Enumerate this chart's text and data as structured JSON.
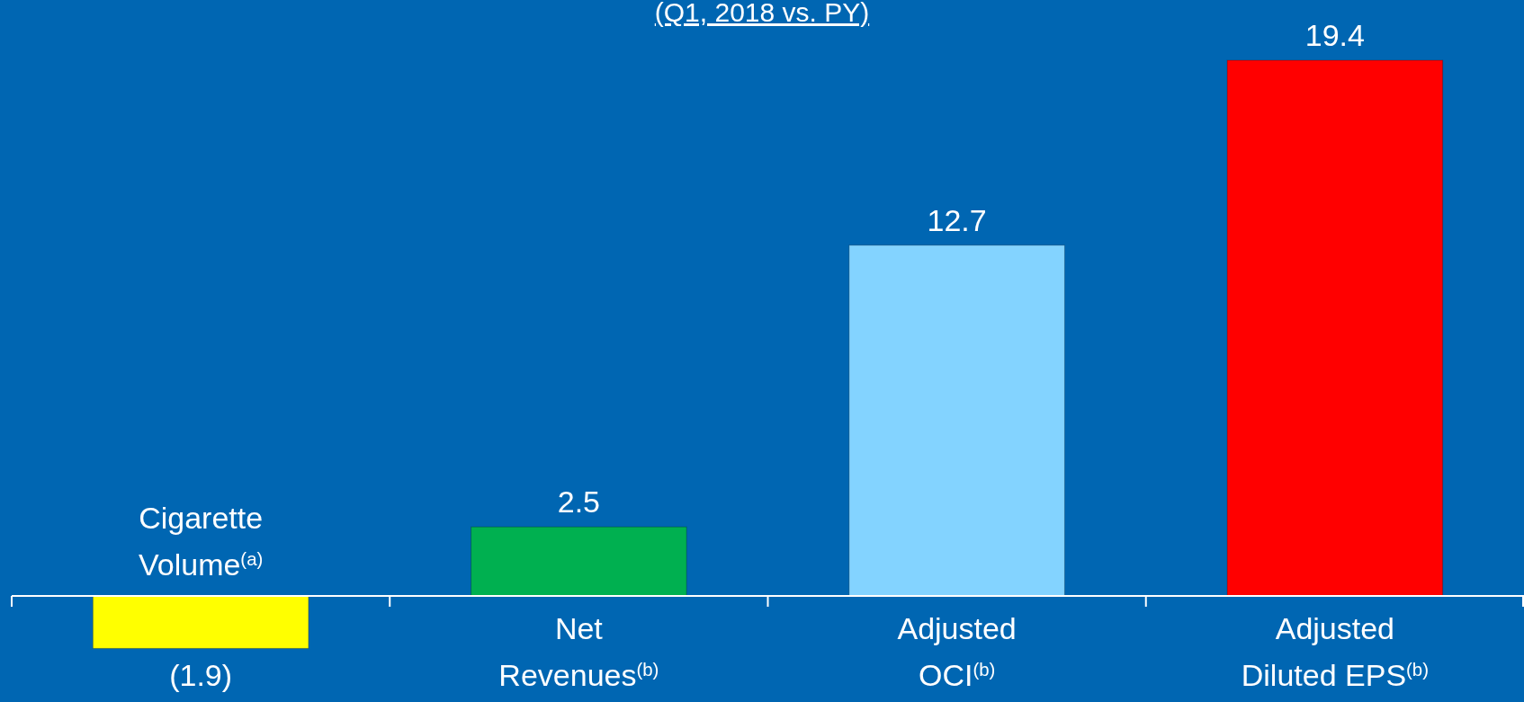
{
  "chart_data": {
    "type": "bar",
    "title": "(Q1, 2018 vs. PY)",
    "categories": [
      "Cigarette Volume$^{(a)}$",
      "Net Revenues$^{(b)}$",
      "Adjusted OCI$^{(b)}$",
      "Adjusted Diluted EPS$^{(b)}$"
    ],
    "values": [
      -1.9,
      2.5,
      12.7,
      19.4
    ],
    "colors": [
      "#ffff00",
      "#00b050",
      "#83d3ff",
      "#ff0000"
    ],
    "value_labels": [
      "(1.9)",
      "2.5",
      "12.7",
      "19.4"
    ]
  }
}
